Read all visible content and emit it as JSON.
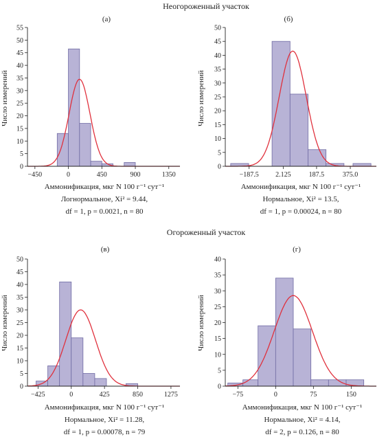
{
  "section_titles": [
    "Неогороженный участок",
    "Огороженный участок"
  ],
  "chart_data": [
    {
      "type": "bar",
      "title": "(а)",
      "xlabel": "Аммонификация, мкг N 100 г⁻¹ сут⁻¹",
      "ylabel": "Число измерений",
      "xlim": [
        -550,
        1500
      ],
      "ylim": [
        0,
        55
      ],
      "xticks": [
        -450,
        0,
        450,
        900,
        1350
      ],
      "xtick_labels": [
        "−450",
        "0",
        "450",
        "900",
        "1350"
      ],
      "yticks": [
        0,
        5,
        10,
        15,
        20,
        25,
        30,
        35,
        40,
        45,
        50,
        55
      ],
      "bins": [
        {
          "x0": -150,
          "x1": 0,
          "count": 13
        },
        {
          "x0": 0,
          "x1": 150,
          "count": 46.5
        },
        {
          "x0": 150,
          "x1": 300,
          "count": 17
        },
        {
          "x0": 300,
          "x1": 450,
          "count": 2
        },
        {
          "x0": 450,
          "x1": 600,
          "count": 1
        },
        {
          "x0": 750,
          "x1": 900,
          "count": 1.5
        }
      ],
      "curve": {
        "peak": 34.5,
        "center": 150,
        "sd": 140
      },
      "stats_line1": "Логнормальное, Xi² = 9.44,",
      "stats_line2": "df = 1, p = 0.0021, n = 80"
    },
    {
      "type": "bar",
      "title": "(б)",
      "xlabel": "Аммонификация, мкг N 100 г⁻¹ сут⁻¹",
      "ylabel": "Число измерений",
      "xlim": [
        -320,
        520
      ],
      "ylim": [
        0,
        50
      ],
      "xticks": [
        -187.5,
        2.125,
        187.5,
        375
      ],
      "xtick_labels": [
        "−187.5",
        "2.125",
        "187.5",
        "375.0"
      ],
      "yticks": [
        0,
        5,
        10,
        15,
        20,
        25,
        30,
        35,
        40,
        45,
        50
      ],
      "bins": [
        {
          "x0": -290,
          "x1": -190,
          "count": 1
        },
        {
          "x0": -60,
          "x1": 40,
          "count": 45
        },
        {
          "x0": 40,
          "x1": 140,
          "count": 26
        },
        {
          "x0": 140,
          "x1": 240,
          "count": 6
        },
        {
          "x0": 240,
          "x1": 340,
          "count": 1
        },
        {
          "x0": 390,
          "x1": 490,
          "count": 1
        }
      ],
      "curve": {
        "peak": 41.5,
        "center": 55,
        "sd": 75
      },
      "stats_line1": "Нормальное, Xi² = 13.5,",
      "stats_line2": "df = 1, p = 0.00024, n = 80"
    },
    {
      "type": "bar",
      "title": "(в)",
      "xlabel": "Аммонификация, мкг N 100 г⁻¹ сут⁻¹",
      "ylabel": "Число измерений",
      "xlim": [
        -560,
        1390
      ],
      "ylim": [
        0,
        50
      ],
      "xticks": [
        -425,
        0,
        425,
        850,
        1275
      ],
      "xtick_labels": [
        "−425",
        "0",
        "425",
        "850",
        "1275"
      ],
      "yticks": [
        0,
        5,
        10,
        15,
        20,
        25,
        30,
        35,
        40,
        45,
        50
      ],
      "bins": [
        {
          "x0": -450,
          "x1": -300,
          "count": 2
        },
        {
          "x0": -300,
          "x1": -150,
          "count": 8
        },
        {
          "x0": -150,
          "x1": 0,
          "count": 41
        },
        {
          "x0": 0,
          "x1": 150,
          "count": 19
        },
        {
          "x0": 150,
          "x1": 300,
          "count": 5
        },
        {
          "x0": 300,
          "x1": 450,
          "count": 3
        },
        {
          "x0": 700,
          "x1": 850,
          "count": 1
        }
      ],
      "curve": {
        "peak": 30,
        "center": 120,
        "sd": 190
      },
      "stats_line1": "Нормальное, Xi² = 11.28,",
      "stats_line2": "df = 1, p = 0.00078, n = 79"
    },
    {
      "type": "bar",
      "title": "(г)",
      "xlabel": "Аммонификация, мкг N 100 г⁻¹ сут⁻¹",
      "ylabel": "Число измерений",
      "xlim": [
        -100,
        200
      ],
      "ylim": [
        0,
        40
      ],
      "xticks": [
        -75,
        0,
        75,
        150
      ],
      "xtick_labels": [
        "−75",
        "0",
        "75",
        "150"
      ],
      "yticks": [
        0,
        5,
        10,
        15,
        20,
        25,
        30,
        35,
        40
      ],
      "bins": [
        {
          "x0": -95,
          "x1": -65,
          "count": 1
        },
        {
          "x0": -65,
          "x1": -35,
          "count": 2
        },
        {
          "x0": -35,
          "x1": 0,
          "count": 19
        },
        {
          "x0": 0,
          "x1": 35,
          "count": 34
        },
        {
          "x0": 35,
          "x1": 70,
          "count": 18
        },
        {
          "x0": 70,
          "x1": 105,
          "count": 2
        },
        {
          "x0": 105,
          "x1": 140,
          "count": 2
        },
        {
          "x0": 140,
          "x1": 175,
          "count": 2
        }
      ],
      "curve": {
        "peak": 28.5,
        "center": 35,
        "sd": 38
      },
      "stats_line1": "Нормальное, Xi² = 4.14,",
      "stats_line2": "df = 2, p = 0.126, n = 80"
    }
  ],
  "colors": {
    "bar_fill": "#b8b3d6",
    "bar_stroke": "#6f6aa3",
    "curve": "#e0303c",
    "axis": "#222222"
  }
}
